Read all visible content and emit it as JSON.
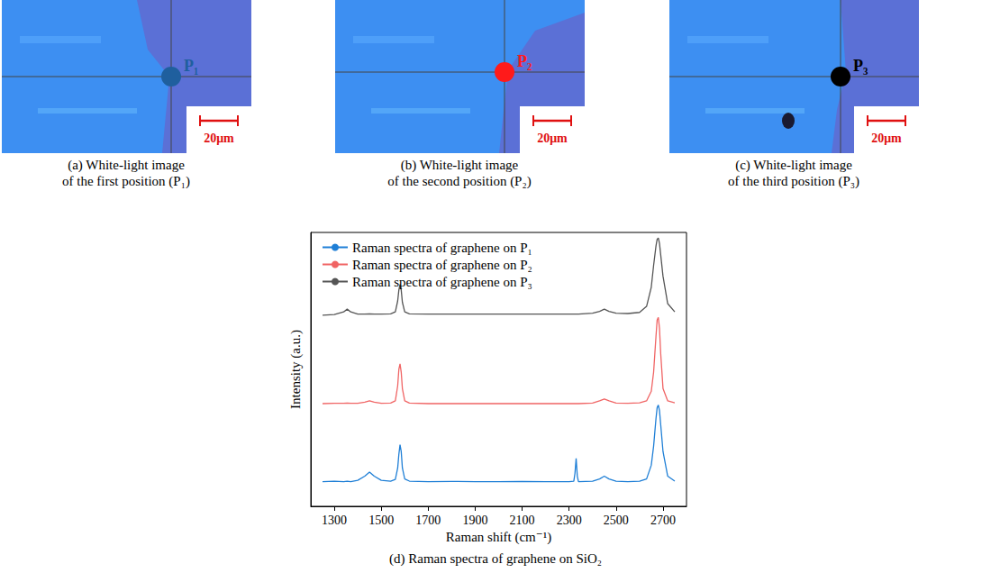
{
  "panels": [
    {
      "caption": [
        "(a)  White-light image",
        "of the first position (P₁)"
      ],
      "label": "P₁",
      "color": "#1f5f9e",
      "scale_bar": "20μm"
    },
    {
      "caption": [
        "(b)  White-light image",
        "of the second position (P₂)"
      ],
      "label": "P₂",
      "color": "#ff1a1a",
      "scale_bar": "20μm"
    },
    {
      "caption": [
        "(c)  White-light image",
        "of the third position (P₃)"
      ],
      "label": "P₃",
      "color": "#000000",
      "scale_bar": "20μm"
    }
  ],
  "chart_data": {
    "type": "line",
    "title": "(d) Raman spectra of graphene on SiO₂",
    "x_label": "Raman shift (cm⁻¹)",
    "y_label": "Intensity (a.u.)",
    "xlim": [
      1200,
      2800
    ],
    "xticks": [
      1300,
      1500,
      1700,
      1900,
      2100,
      2300,
      2500,
      2700
    ],
    "ylim": [
      0,
      10
    ],
    "yticks": [],
    "tick_labels": "x",
    "grid": false,
    "legend": "upper left",
    "x": [
      1250,
      1300,
      1340,
      1355,
      1370,
      1400,
      1430,
      1450,
      1470,
      1500,
      1540,
      1560,
      1570,
      1575,
      1580,
      1585,
      1590,
      1600,
      1620,
      1700,
      1800,
      1900,
      2000,
      2100,
      2200,
      2300,
      2320,
      2325,
      2330,
      2335,
      2340,
      2400,
      2430,
      2450,
      2470,
      2500,
      2550,
      2600,
      2630,
      2650,
      2660,
      2670,
      2675,
      2680,
      2685,
      2690,
      2700,
      2720,
      2750
    ],
    "series": [
      {
        "name": "Raman spectra of graphene on P₁",
        "color": "#1f7fd6",
        "values": [
          0.9,
          0.92,
          0.9,
          0.92,
          0.9,
          0.95,
          1.1,
          1.25,
          1.1,
          0.95,
          0.92,
          0.98,
          1.4,
          1.9,
          2.25,
          2.0,
          1.4,
          1.0,
          0.92,
          0.9,
          0.91,
          0.9,
          0.9,
          0.91,
          0.9,
          0.9,
          0.92,
          1.2,
          1.75,
          1.1,
          0.9,
          0.92,
          1.0,
          1.1,
          1.0,
          0.92,
          0.9,
          0.92,
          1.0,
          1.5,
          2.2,
          3.2,
          3.6,
          3.7,
          3.5,
          3.0,
          2.0,
          1.1,
          0.92
        ]
      },
      {
        "name": "Raman spectra of graphene on P₂",
        "color": "#f06464",
        "values": [
          3.75,
          3.76,
          3.76,
          3.77,
          3.76,
          3.76,
          3.8,
          3.85,
          3.8,
          3.76,
          3.77,
          3.85,
          4.4,
          5.0,
          5.2,
          4.9,
          4.3,
          3.85,
          3.77,
          3.75,
          3.75,
          3.75,
          3.75,
          3.75,
          3.75,
          3.75,
          3.75,
          3.75,
          3.75,
          3.75,
          3.75,
          3.77,
          3.85,
          3.92,
          3.85,
          3.77,
          3.76,
          3.78,
          3.85,
          4.2,
          4.9,
          6.2,
          6.8,
          6.9,
          6.5,
          5.6,
          4.3,
          3.85,
          3.78
        ]
      },
      {
        "name": "Raman spectra of graphene on P₃",
        "color": "#555555",
        "values": [
          6.98,
          7.0,
          7.1,
          7.2,
          7.1,
          7.02,
          7.02,
          7.03,
          7.02,
          7.02,
          7.03,
          7.1,
          7.5,
          7.9,
          8.1,
          7.9,
          7.45,
          7.1,
          7.03,
          7.02,
          7.02,
          7.02,
          7.02,
          7.02,
          7.02,
          7.02,
          7.02,
          7.02,
          7.02,
          7.02,
          7.02,
          7.05,
          7.12,
          7.2,
          7.12,
          7.05,
          7.04,
          7.08,
          7.3,
          8.0,
          8.8,
          9.5,
          9.75,
          9.8,
          9.6,
          9.2,
          8.4,
          7.4,
          7.1
        ]
      }
    ]
  }
}
